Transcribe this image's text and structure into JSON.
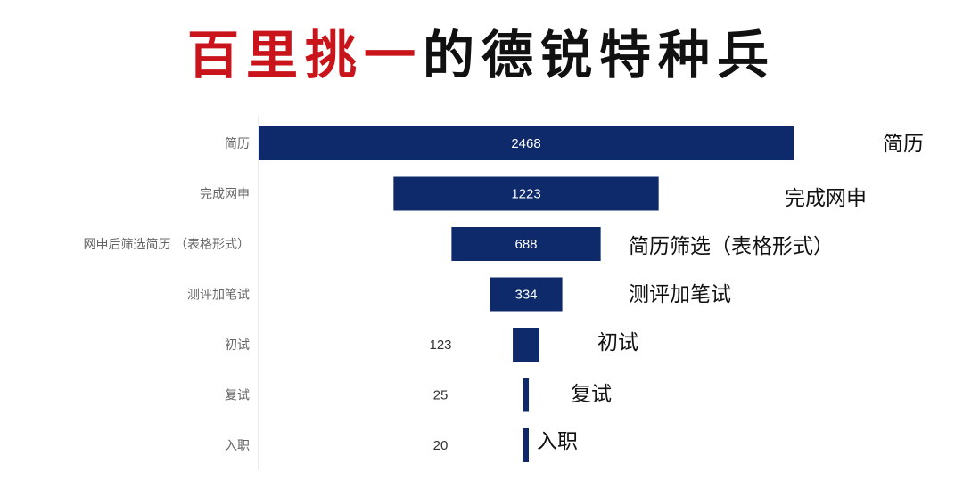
{
  "title": {
    "highlight": "百里挑一",
    "rest": "的德锐特种兵"
  },
  "colors": {
    "title_highlight": "#c8141a",
    "bar": "#0e2a6b",
    "axis": "#d9d9d9"
  },
  "chart_data": {
    "type": "bar",
    "orientation": "horizontal-funnel",
    "categories": [
      "简历",
      "完成网申",
      "网申后筛选简历 （表格形式）",
      "测评加笔试",
      "初试",
      "复试",
      "入职"
    ],
    "values": [
      2468,
      1223,
      688,
      334,
      123,
      25,
      20
    ],
    "value_labels": [
      "2468",
      "1223",
      "688",
      "334",
      "123",
      "25",
      "20"
    ],
    "annotations": [
      "简历",
      "完成网申",
      "简历筛选（表格形式）",
      "测评加笔试",
      "初试",
      "复试",
      "入职"
    ]
  }
}
